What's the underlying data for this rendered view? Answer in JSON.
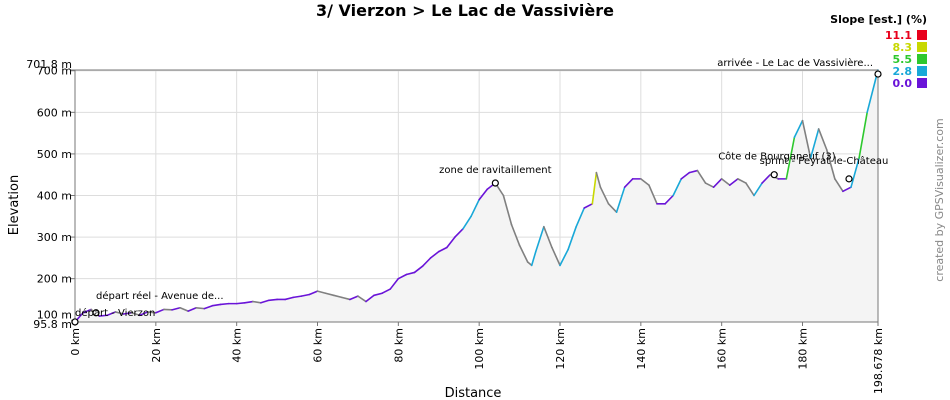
{
  "chart_data": {
    "type": "area",
    "title": "3/ Vierzon > Le Lac de Vassivière",
    "xlabel": "Distance",
    "ylabel": "Elevation",
    "xlim": [
      0,
      198.678
    ],
    "ylim": [
      95.8,
      701.8
    ],
    "x_ticks": [
      {
        "value": 0,
        "label": "0 km"
      },
      {
        "value": 20,
        "label": "20 km"
      },
      {
        "value": 40,
        "label": "40 km"
      },
      {
        "value": 60,
        "label": "60 km"
      },
      {
        "value": 80,
        "label": "80 km"
      },
      {
        "value": 100,
        "label": "100 km"
      },
      {
        "value": 120,
        "label": "120 km"
      },
      {
        "value": 140,
        "label": "140 km"
      },
      {
        "value": 160,
        "label": "160 km"
      },
      {
        "value": 180,
        "label": "180 km"
      },
      {
        "value": 198.678,
        "label": "198.678 km"
      }
    ],
    "y_ticks": [
      {
        "value": 95.8,
        "label": "95.8 m"
      },
      {
        "value": 100,
        "label": "100 m"
      },
      {
        "value": 200,
        "label": "200 m"
      },
      {
        "value": 300,
        "label": "300 m"
      },
      {
        "value": 400,
        "label": "400 m"
      },
      {
        "value": 500,
        "label": "500 m"
      },
      {
        "value": 600,
        "label": "600 m"
      },
      {
        "value": 700,
        "label": "700 m"
      },
      {
        "value": 701.8,
        "label": "701.8 m"
      }
    ],
    "grid": true,
    "legend": {
      "title": "Slope [est.] (%)",
      "placement": "top-right",
      "entries": [
        {
          "label": "11.1",
          "color": "#e8001c"
        },
        {
          "label": "8.3",
          "color": "#c8d800"
        },
        {
          "label": "5.5",
          "color": "#2ec82e"
        },
        {
          "label": "2.8",
          "color": "#19a8d8"
        },
        {
          "label": "0.0",
          "color": "#6a14d8"
        }
      ]
    },
    "series": [
      {
        "x": [
          0,
          2,
          4,
          6,
          8,
          10,
          12,
          14,
          16,
          18,
          20,
          22,
          24,
          26,
          28,
          30,
          32,
          34,
          36,
          38,
          40,
          42,
          44,
          46,
          48,
          50,
          52,
          54,
          56,
          58,
          60,
          62,
          64,
          66,
          68,
          70,
          72,
          74,
          76,
          78,
          80,
          82,
          84,
          86,
          88,
          90,
          92,
          94,
          96,
          98,
          100,
          102,
          104,
          106,
          108,
          110,
          112,
          113,
          114,
          116,
          118,
          120,
          122,
          124,
          126,
          128,
          129,
          130,
          132,
          134,
          136,
          138,
          140,
          142,
          144,
          146,
          148,
          150,
          152,
          154,
          156,
          158,
          160,
          162,
          164,
          166,
          168,
          170,
          172,
          174,
          176,
          178,
          180,
          182,
          184,
          186,
          188,
          190,
          192,
          194,
          196,
          198.678
        ],
        "y": [
          96,
          118,
          126,
          110,
          112,
          120,
          115,
          118,
          112,
          120,
          118,
          126,
          125,
          130,
          122,
          130,
          128,
          135,
          138,
          140,
          140,
          142,
          145,
          142,
          148,
          150,
          150,
          155,
          158,
          162,
          170,
          165,
          160,
          155,
          150,
          158,
          145,
          160,
          165,
          175,
          200,
          210,
          215,
          230,
          250,
          265,
          275,
          300,
          320,
          350,
          390,
          415,
          430,
          400,
          330,
          280,
          240,
          232,
          265,
          325,
          275,
          232,
          270,
          325,
          370,
          380,
          455,
          420,
          380,
          360,
          420,
          440,
          440,
          425,
          380,
          380,
          400,
          440,
          455,
          460,
          430,
          420,
          440,
          425,
          440,
          430,
          400,
          430,
          450,
          440,
          440,
          540,
          580,
          490,
          560,
          510,
          440,
          410,
          420,
          490,
          600,
          701.8
        ]
      }
    ],
    "annotations": [
      {
        "label": "départ réel - Avenue de...",
        "x": 5.2,
        "y": 118
      },
      {
        "label": "départ - Vierzon",
        "x": 0,
        "y": 96
      },
      {
        "label": "zone de ravitaillement",
        "x": 104,
        "y": 430
      },
      {
        "label": "Côte de Bourganeuf (3)",
        "x": 173,
        "y": 450
      },
      {
        "label": "sprint - Peyrat-le-Château",
        "x": 191.5,
        "y": 440
      },
      {
        "label": "arrivée - Le Lac de Vassivière...",
        "x": 198.678,
        "y": 692
      }
    ]
  },
  "credit": "created by GPSVisualizer.com"
}
